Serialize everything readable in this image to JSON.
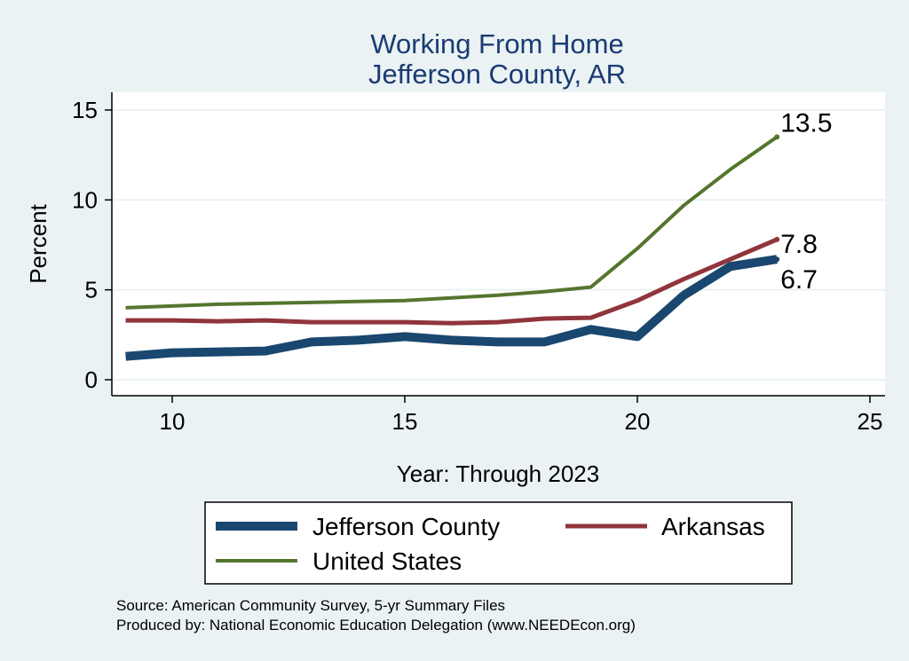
{
  "chart_data": {
    "type": "line",
    "title": "Working From Home",
    "subtitle": "Jefferson County, AR",
    "xlabel": "Year: Through 2023",
    "ylabel": "Percent",
    "xlim": [
      9,
      25
    ],
    "ylim": [
      0,
      15
    ],
    "x_ticks": [
      10,
      15,
      20,
      25
    ],
    "y_ticks": [
      0,
      5,
      10,
      15
    ],
    "grid": true,
    "legend_position": "bottom",
    "series": [
      {
        "name": "Jefferson County",
        "color": "#1a476f",
        "x": [
          9,
          10,
          11,
          12,
          13,
          14,
          15,
          16,
          17,
          18,
          19,
          20,
          21,
          22,
          23
        ],
        "y": [
          1.3,
          1.5,
          1.55,
          1.6,
          2.1,
          2.2,
          2.4,
          2.2,
          2.1,
          2.1,
          2.8,
          2.4,
          4.7,
          6.3,
          6.7
        ],
        "end_label": "6.7"
      },
      {
        "name": "Arkansas",
        "color": "#90353b",
        "x": [
          9,
          10,
          11,
          12,
          13,
          14,
          15,
          16,
          17,
          18,
          19,
          20,
          21,
          22,
          23
        ],
        "y": [
          3.3,
          3.3,
          3.25,
          3.3,
          3.2,
          3.2,
          3.2,
          3.15,
          3.2,
          3.4,
          3.45,
          4.4,
          5.6,
          6.7,
          7.8
        ],
        "end_label": "7.8"
      },
      {
        "name": "United States",
        "color": "#55752f",
        "x": [
          9,
          10,
          11,
          12,
          13,
          14,
          15,
          16,
          17,
          18,
          19,
          20,
          21,
          22,
          23
        ],
        "y": [
          4.0,
          4.1,
          4.2,
          4.25,
          4.3,
          4.35,
          4.4,
          4.55,
          4.7,
          4.9,
          5.15,
          7.3,
          9.7,
          11.7,
          13.5
        ],
        "end_label": "13.5"
      }
    ],
    "legend": [
      {
        "label": "Jefferson County",
        "color": "#1a476f"
      },
      {
        "label": "Arkansas",
        "color": "#90353b"
      },
      {
        "label": "United States",
        "color": "#55752f"
      }
    ],
    "notes": [
      "Source: American Community Survey, 5-yr Summary Files",
      "Produced by: National Economic Education Delegation (www.NEEDEcon.org)"
    ]
  }
}
